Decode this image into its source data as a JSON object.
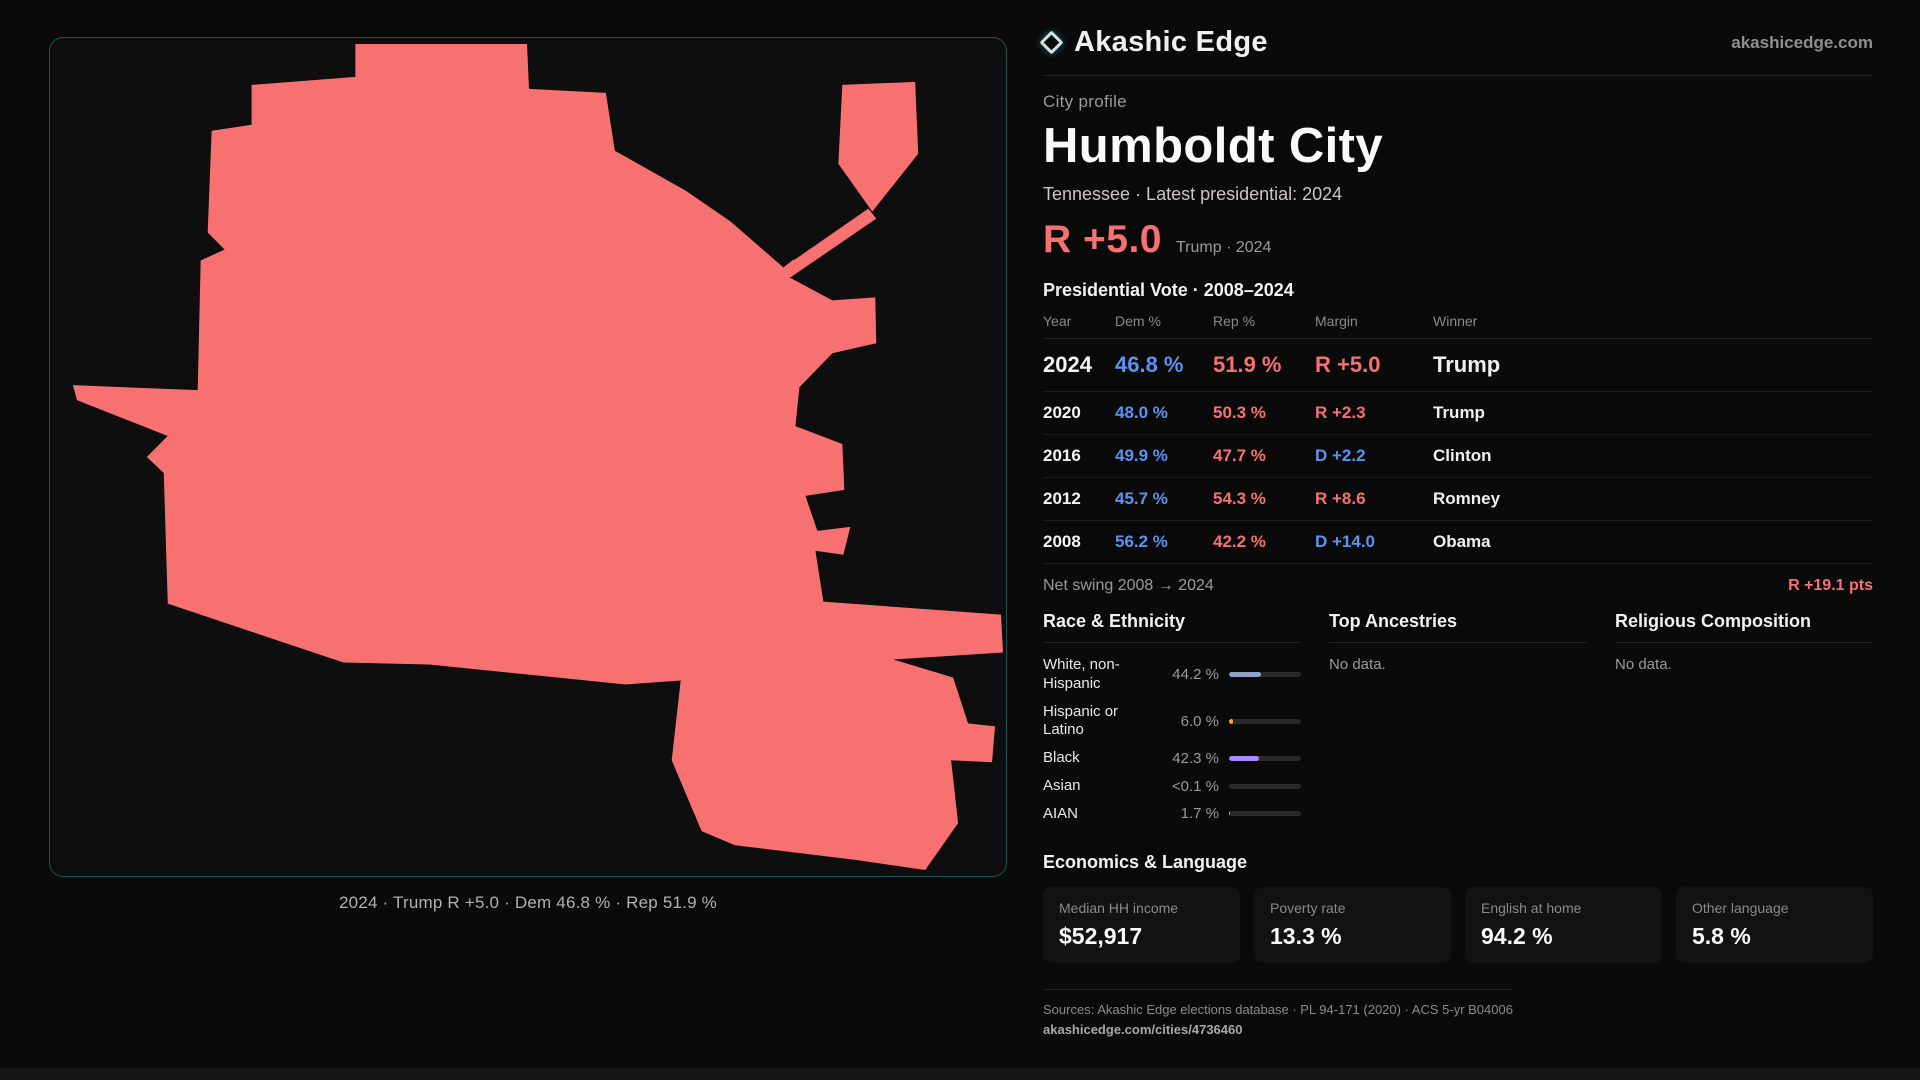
{
  "header": {
    "brand": "Akashic Edge",
    "site": "akashicedge.com"
  },
  "profile": {
    "kicker": "City profile",
    "title": "Humboldt City",
    "subtitle": "Tennessee · Latest presidential: 2024",
    "headline_margin": "R +5.0",
    "headline_note": "Trump · 2024"
  },
  "map": {
    "caption": "2024 · Trump R +5.0 · Dem 46.8 % · Rep 51.9 %"
  },
  "vote_table": {
    "title": "Presidential Vote · 2008–2024",
    "columns": [
      "Year",
      "Dem %",
      "Rep %",
      "Margin",
      "Winner"
    ],
    "rows": [
      {
        "year": "2024",
        "dem": "46.8 %",
        "rep": "51.9 %",
        "margin": "R +5.0",
        "winner": "Trump",
        "party": "R"
      },
      {
        "year": "2020",
        "dem": "48.0 %",
        "rep": "50.3 %",
        "margin": "R +2.3",
        "winner": "Trump",
        "party": "R"
      },
      {
        "year": "2016",
        "dem": "49.9 %",
        "rep": "47.7 %",
        "margin": "D +2.2",
        "winner": "Clinton",
        "party": "D"
      },
      {
        "year": "2012",
        "dem": "45.7 %",
        "rep": "54.3 %",
        "margin": "R +8.6",
        "winner": "Romney",
        "party": "R"
      },
      {
        "year": "2008",
        "dem": "56.2 %",
        "rep": "42.2 %",
        "margin": "D +14.0",
        "winner": "Obama",
        "party": "D"
      }
    ],
    "net_swing_label": "Net swing 2008 → 2024",
    "net_swing_value": "R +19.1 pts"
  },
  "demographics": {
    "race": {
      "title": "Race & Ethnicity",
      "rows": [
        {
          "label": "White, non-Hispanic",
          "value": "44.2 %",
          "pct": 44.2,
          "color": "#93a5c6"
        },
        {
          "label": "Hispanic or Latino",
          "value": "6.0 %",
          "pct": 6.0,
          "color": "#f5a623"
        },
        {
          "label": "Black",
          "value": "42.3 %",
          "pct": 42.3,
          "color": "#a78bfa"
        },
        {
          "label": "Asian",
          "value": "<0.1 %",
          "pct": 0,
          "color": "#34d399"
        },
        {
          "label": "AIAN",
          "value": "1.7 %",
          "pct": 1.7,
          "color": "#f5a623"
        }
      ]
    },
    "ancestries": {
      "title": "Top Ancestries",
      "empty": "No data."
    },
    "religion": {
      "title": "Religious Composition",
      "empty": "No data."
    }
  },
  "economics": {
    "title": "Economics & Language",
    "stats": [
      {
        "label": "Median HH income",
        "value": "$52,917"
      },
      {
        "label": "Poverty rate",
        "value": "13.3 %"
      },
      {
        "label": "English at home",
        "value": "94.2 %"
      },
      {
        "label": "Other language",
        "value": "5.8 %"
      }
    ]
  },
  "footer": {
    "sources": "Sources: Akashic Edge elections database · PL 94-171 (2020) · ACS 5-yr B04006",
    "permalink": "akashicedge.com/cities/4736460"
  },
  "colors": {
    "accent_rep": "#f87171",
    "accent_dem": "#5b93f0",
    "map_fill": "#f87171",
    "panel_border": "#1f5052"
  }
}
